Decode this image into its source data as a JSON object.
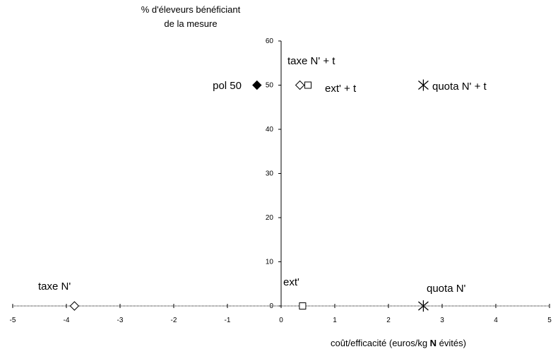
{
  "chart_data": {
    "type": "scatter",
    "title": "",
    "ylabel_line1": "% d'éleveurs bénéficiant",
    "ylabel_line2": "de la mesure",
    "xlabel_pre": "coût/efficacité (euros/kg ",
    "xlabel_bold": "N",
    "xlabel_post": " évités)",
    "xlim": [
      -5,
      5
    ],
    "ylim": [
      0,
      60
    ],
    "xticks": [
      -5,
      -4,
      -3,
      -2,
      -1,
      0,
      1,
      2,
      3,
      4,
      5
    ],
    "yticks": [
      0,
      10,
      20,
      30,
      40,
      50,
      60
    ],
    "grid": false,
    "points": [
      {
        "label": "taxe N'",
        "x": -3.85,
        "y": 0,
        "marker": "diamond-open"
      },
      {
        "label": "ext'",
        "x": 0.4,
        "y": 0,
        "marker": "square-open"
      },
      {
        "label": "quota N'",
        "x": 2.65,
        "y": 0,
        "marker": "asterisk"
      },
      {
        "label": "pol 50",
        "x": -0.45,
        "y": 50,
        "marker": "diamond-filled"
      },
      {
        "label": "taxe N' + t",
        "x": 0.35,
        "y": 50,
        "marker": "diamond-open"
      },
      {
        "label": "ext' + t",
        "x": 0.5,
        "y": 50,
        "marker": "square-open"
      },
      {
        "label": "quota N' + t",
        "x": 2.65,
        "y": 50,
        "marker": "asterisk"
      }
    ]
  }
}
